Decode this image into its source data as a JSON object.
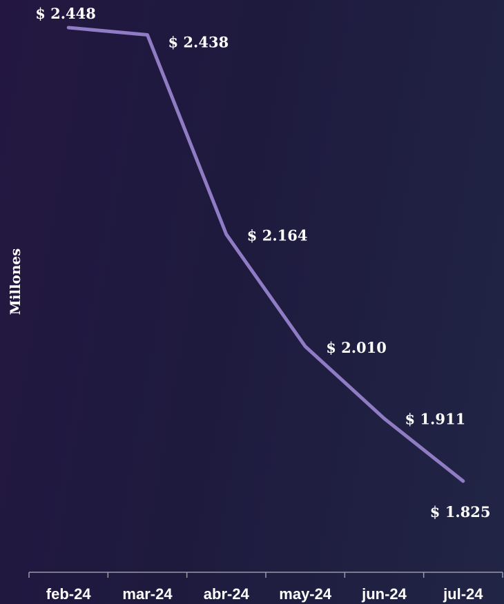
{
  "chart_data": {
    "type": "line",
    "title": "",
    "xlabel": "",
    "ylabel": "Millones",
    "categories": [
      "feb-24",
      "mar-24",
      "abr-24",
      "may-24",
      "jun-24",
      "jul-24"
    ],
    "series": [
      {
        "values": [
          2448,
          2438,
          2164,
          2010,
          1911,
          1825
        ],
        "labels": [
          "$ 2.448",
          "$ 2.438",
          "$ 2.164",
          "$ 2.010",
          "$ 1.911",
          "$ 1.825"
        ],
        "color": "#8f7cc4"
      }
    ],
    "ylim": [
      1600,
      2480
    ],
    "grid": false,
    "legend": "none"
  },
  "colors": {
    "background_start": "#231741",
    "background_end": "#212545",
    "line": "#8f7cc4",
    "text": "#ffffff",
    "axis": "#9a9aa8"
  }
}
